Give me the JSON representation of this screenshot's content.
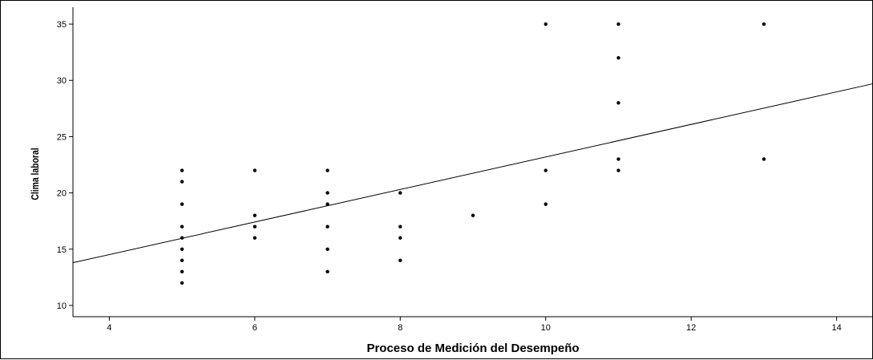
{
  "chart_data": {
    "type": "scatter",
    "title": "",
    "xlabel": "Proceso de Medición del Desempeño",
    "ylabel": "Clima laboral",
    "xlim": [
      3.5,
      14.5
    ],
    "ylim": [
      9,
      36.5
    ],
    "x_ticks": [
      4,
      6,
      8,
      10,
      12,
      14
    ],
    "y_ticks": [
      10,
      15,
      20,
      25,
      30,
      35
    ],
    "grid": false,
    "colors": {
      "points": "#000000",
      "fit_line": "#000000",
      "axes": "#000000"
    },
    "series": [
      {
        "points": [
          {
            "x": 5,
            "y": 22
          },
          {
            "x": 5,
            "y": 21
          },
          {
            "x": 5,
            "y": 19
          },
          {
            "x": 5,
            "y": 17
          },
          {
            "x": 5,
            "y": 16
          },
          {
            "x": 5,
            "y": 15
          },
          {
            "x": 5,
            "y": 14
          },
          {
            "x": 5,
            "y": 13
          },
          {
            "x": 5,
            "y": 12
          },
          {
            "x": 6,
            "y": 22
          },
          {
            "x": 6,
            "y": 18
          },
          {
            "x": 6,
            "y": 17
          },
          {
            "x": 6,
            "y": 16
          },
          {
            "x": 7,
            "y": 22
          },
          {
            "x": 7,
            "y": 20
          },
          {
            "x": 7,
            "y": 19
          },
          {
            "x": 7,
            "y": 17
          },
          {
            "x": 7,
            "y": 15
          },
          {
            "x": 7,
            "y": 13
          },
          {
            "x": 8,
            "y": 20
          },
          {
            "x": 8,
            "y": 17
          },
          {
            "x": 8,
            "y": 16
          },
          {
            "x": 8,
            "y": 14
          },
          {
            "x": 9,
            "y": 18
          },
          {
            "x": 10,
            "y": 35
          },
          {
            "x": 10,
            "y": 22
          },
          {
            "x": 10,
            "y": 19
          },
          {
            "x": 11,
            "y": 35
          },
          {
            "x": 11,
            "y": 32
          },
          {
            "x": 11,
            "y": 28
          },
          {
            "x": 11,
            "y": 23
          },
          {
            "x": 11,
            "y": 22
          },
          {
            "x": 13,
            "y": 35
          },
          {
            "x": 13,
            "y": 23
          }
        ]
      }
    ],
    "fit_line": {
      "type": "linear",
      "points": [
        {
          "x": 3.5,
          "y": 13.8
        },
        {
          "x": 14.5,
          "y": 29.7
        }
      ]
    }
  }
}
